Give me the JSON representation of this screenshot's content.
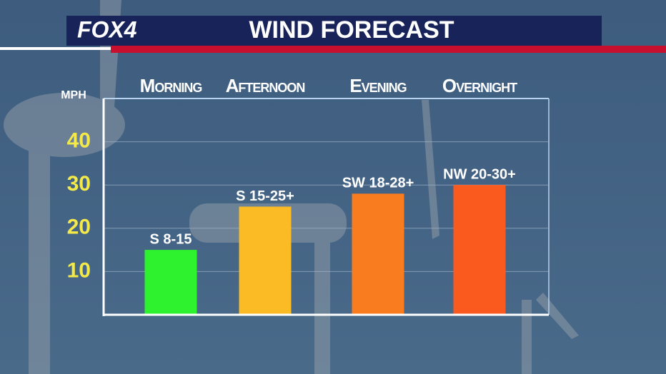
{
  "brand": "FOX4",
  "chart_data": {
    "type": "bar",
    "title": "WIND FORECAST",
    "y_label": "MPH",
    "categories": [
      "Morning",
      "Afternoon",
      "Evening",
      "Overnight"
    ],
    "values": [
      15,
      25,
      28,
      30
    ],
    "value_labels": [
      "S 8-15",
      "S 15-25+",
      "SW 18-28+",
      "NW 20-30+"
    ],
    "colors": [
      "#2ef22e",
      "#fbbb24",
      "#f97c1f",
      "#fb5a1f"
    ],
    "ylim": [
      0,
      50
    ],
    "yticks": [
      10,
      20,
      30,
      40
    ],
    "grid": true
  }
}
